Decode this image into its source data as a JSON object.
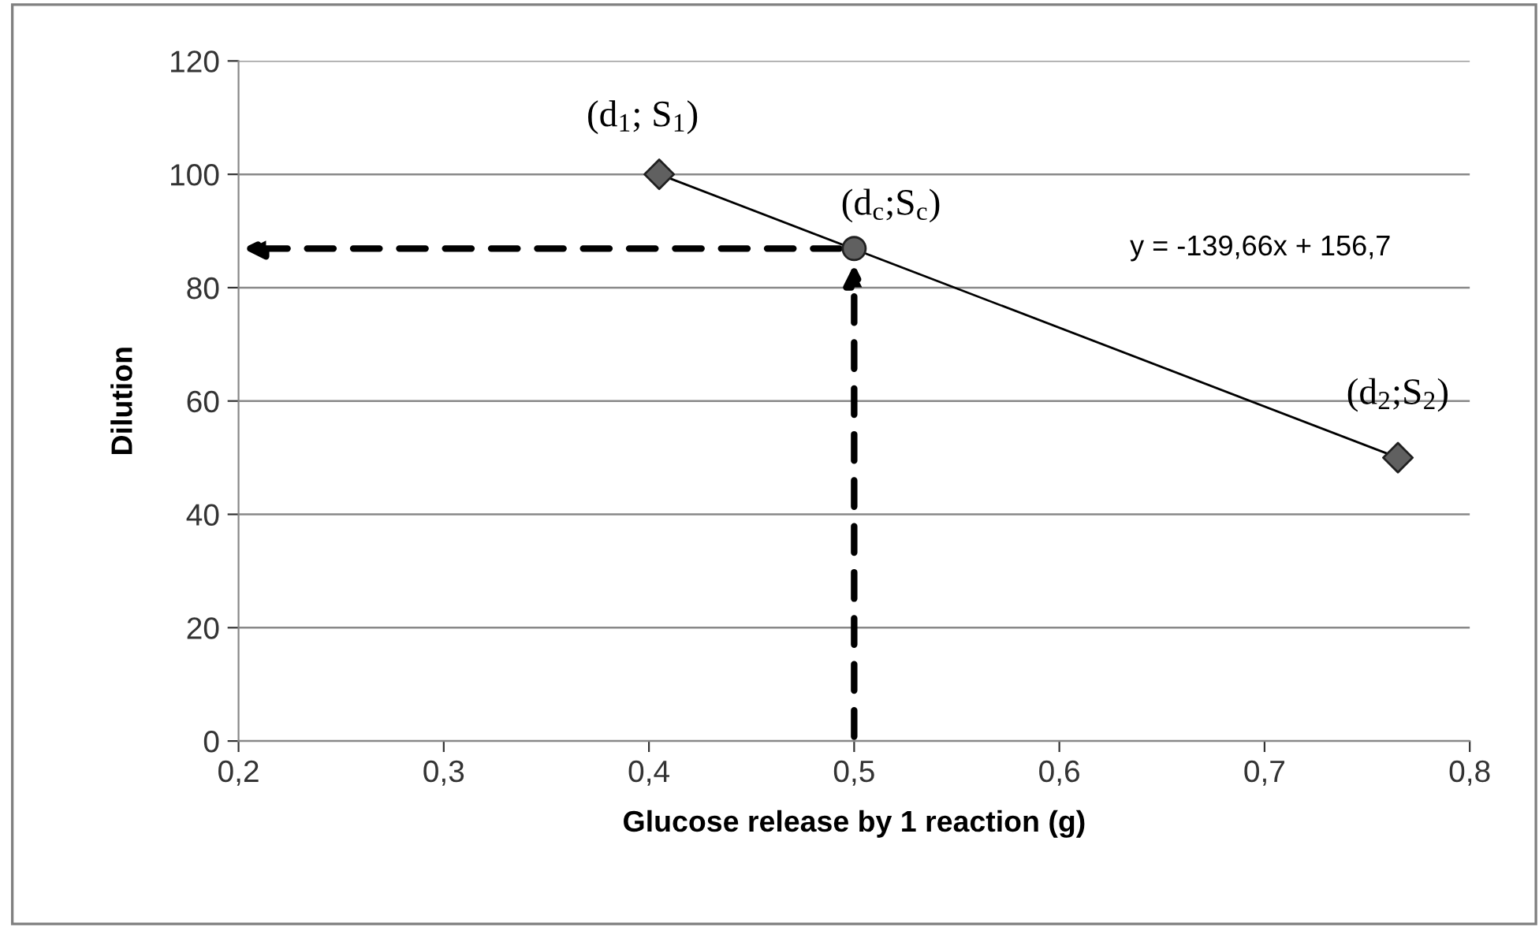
{
  "chart_data": {
    "type": "scatter",
    "xlabel": "Glucose release by 1 reaction (g)",
    "ylabel": "Dilution",
    "series": [
      {
        "type": "line",
        "x": [
          0.405,
          0.765
        ],
        "values": [
          100,
          50
        ],
        "color": "#000000",
        "marker": "none",
        "line_style": "solid"
      },
      {
        "x": [
          0.405,
          0.765
        ],
        "values": [
          100,
          50
        ],
        "color": "#606060",
        "marker": "diamond"
      },
      {
        "x": [
          0.5
        ],
        "values": [
          86.9
        ],
        "color": "#606060",
        "marker": "circle"
      }
    ],
    "annotations": [
      {
        "text": "(d$_{1}$; S$_{1}$)",
        "x": 0.405,
        "y": 100
      },
      {
        "text": "(d$_{c}$;S$_{c}$)",
        "x": 0.5,
        "y": 86.9
      },
      {
        "text": "(d$_{2}$;S$_{2}$)",
        "x": 0.765,
        "y": 50
      },
      "y = -139,66x + 156,7"
    ],
    "xlim": [
      0.2,
      0.8
    ],
    "ylim": [
      0,
      120
    ],
    "xticks": [
      {
        "value": 0.2,
        "label": "0,2"
      },
      {
        "value": 0.3,
        "label": "0,3"
      },
      {
        "value": 0.4,
        "label": "0,4"
      },
      {
        "value": 0.5,
        "label": "0,5"
      },
      {
        "value": 0.6,
        "label": "0,6"
      },
      {
        "value": 0.7,
        "label": "0,7"
      },
      {
        "value": 0.8,
        "label": "0,8"
      }
    ],
    "yticks": [
      0,
      20,
      40,
      60,
      80,
      100,
      120
    ],
    "grid": "y",
    "legend": false
  }
}
